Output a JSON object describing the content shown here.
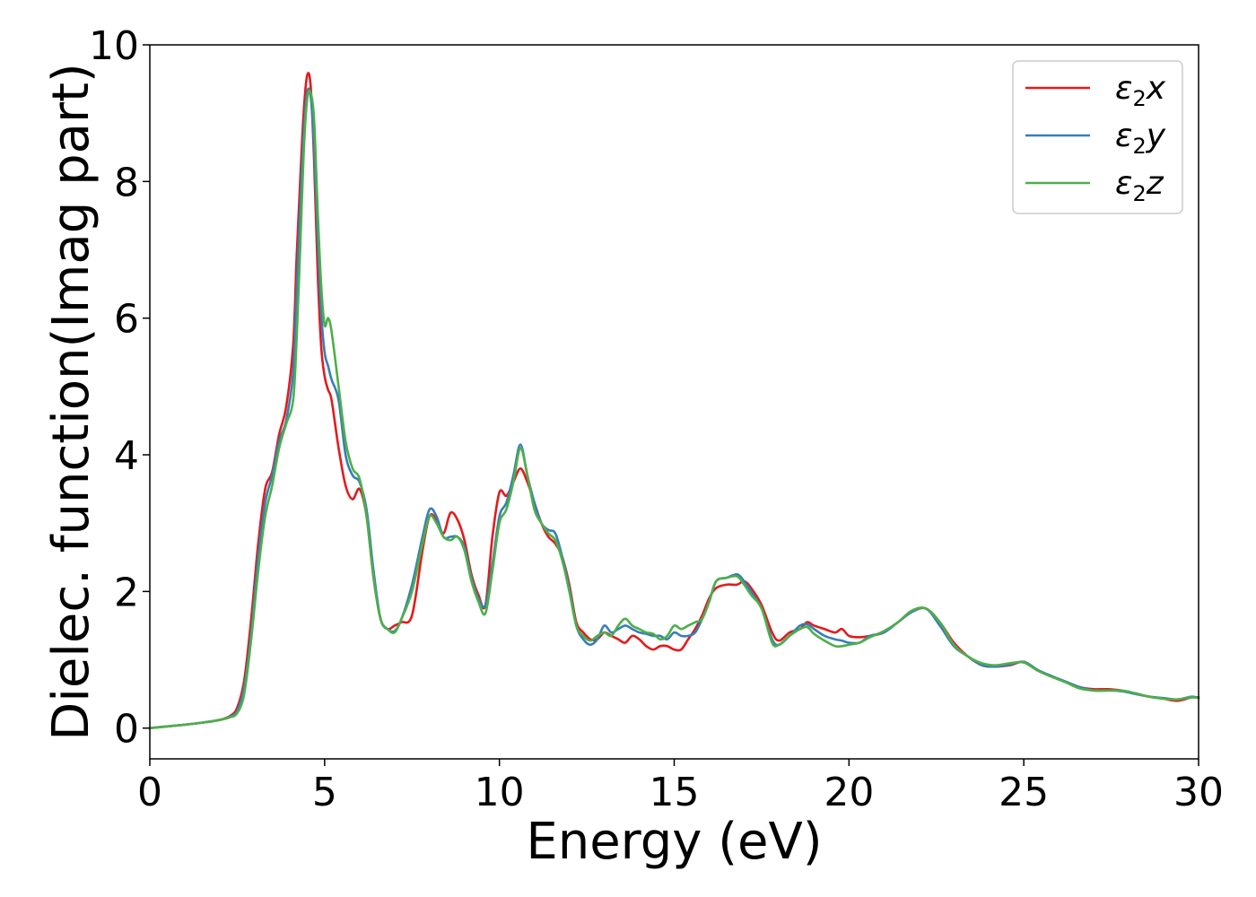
{
  "chart_data": {
    "type": "line",
    "title": "",
    "xlabel": "Energy (eV)",
    "ylabel": "Dielec. function(Imag part)",
    "xlim": [
      0,
      30
    ],
    "ylim": [
      -0.45,
      10
    ],
    "xticks": [
      0,
      5,
      10,
      15,
      20,
      25,
      30
    ],
    "yticks": [
      0,
      2,
      4,
      6,
      8,
      10
    ],
    "grid": false,
    "legend_position": "top-right",
    "series": [
      {
        "name": "ε2x",
        "legend": {
          "base": "ε",
          "sub": "2",
          "suffix": "x"
        },
        "color": "#e41a1c",
        "x": [
          0,
          1,
          1.5,
          2,
          2.3,
          2.5,
          2.7,
          2.9,
          3.1,
          3.3,
          3.5,
          3.7,
          3.9,
          4.1,
          4.2,
          4.3,
          4.4,
          4.5,
          4.6,
          4.7,
          4.8,
          4.9,
          5.0,
          5.1,
          5.2,
          5.4,
          5.6,
          5.8,
          6.0,
          6.2,
          6.4,
          6.6,
          6.8,
          7.0,
          7.2,
          7.5,
          7.8,
          8.0,
          8.2,
          8.4,
          8.6,
          8.8,
          9.0,
          9.2,
          9.4,
          9.6,
          9.8,
          10.0,
          10.2,
          10.4,
          10.6,
          10.8,
          11.0,
          11.2,
          11.4,
          11.6,
          11.8,
          12.0,
          12.2,
          12.4,
          12.6,
          12.8,
          13.0,
          13.2,
          13.4,
          13.6,
          13.8,
          14.0,
          14.2,
          14.4,
          14.6,
          14.8,
          15.0,
          15.2,
          15.4,
          15.6,
          15.8,
          16.0,
          16.2,
          16.5,
          16.8,
          17.0,
          17.2,
          17.5,
          17.8,
          18.0,
          18.3,
          18.6,
          18.8,
          19.0,
          19.3,
          19.6,
          19.8,
          20.0,
          20.3,
          20.6,
          21.0,
          21.4,
          21.8,
          22.2,
          22.6,
          23.0,
          23.4,
          23.8,
          24.2,
          24.6,
          25.0,
          25.4,
          25.8,
          26.2,
          26.6,
          27.0,
          27.4,
          27.8,
          28.2,
          28.6,
          29.0,
          29.4,
          29.8,
          30.0
        ],
        "y": [
          0,
          0.05,
          0.08,
          0.12,
          0.18,
          0.3,
          0.7,
          1.6,
          2.7,
          3.5,
          3.75,
          4.3,
          4.7,
          5.6,
          6.9,
          8.0,
          9.0,
          9.55,
          9.4,
          8.3,
          6.7,
          5.6,
          5.15,
          4.95,
          4.8,
          4.1,
          3.55,
          3.35,
          3.5,
          3.1,
          2.2,
          1.6,
          1.45,
          1.5,
          1.55,
          1.65,
          2.6,
          3.1,
          3.05,
          2.85,
          3.15,
          3.05,
          2.75,
          2.25,
          1.95,
          1.8,
          2.8,
          3.45,
          3.4,
          3.6,
          3.8,
          3.6,
          3.3,
          3.0,
          2.8,
          2.7,
          2.5,
          2.1,
          1.55,
          1.4,
          1.3,
          1.3,
          1.4,
          1.35,
          1.3,
          1.25,
          1.35,
          1.3,
          1.2,
          1.15,
          1.2,
          1.2,
          1.15,
          1.15,
          1.3,
          1.45,
          1.65,
          1.9,
          2.05,
          2.1,
          2.1,
          2.15,
          2.05,
          1.8,
          1.4,
          1.28,
          1.4,
          1.45,
          1.55,
          1.5,
          1.45,
          1.4,
          1.45,
          1.35,
          1.33,
          1.35,
          1.4,
          1.55,
          1.7,
          1.75,
          1.55,
          1.25,
          1.05,
          0.92,
          0.9,
          0.92,
          0.97,
          0.85,
          0.76,
          0.68,
          0.6,
          0.57,
          0.57,
          0.55,
          0.5,
          0.46,
          0.43,
          0.4,
          0.45,
          0.45
        ]
      },
      {
        "name": "ε2y",
        "legend": {
          "base": "ε",
          "sub": "2",
          "suffix": "y"
        },
        "color": "#377eb8",
        "x": [
          0,
          1,
          1.5,
          2,
          2.3,
          2.5,
          2.7,
          2.9,
          3.1,
          3.3,
          3.5,
          3.7,
          3.9,
          4.1,
          4.2,
          4.3,
          4.4,
          4.5,
          4.6,
          4.7,
          4.8,
          4.9,
          5.0,
          5.1,
          5.2,
          5.4,
          5.6,
          5.8,
          6.0,
          6.2,
          6.4,
          6.6,
          6.8,
          7.0,
          7.2,
          7.5,
          7.8,
          8.0,
          8.2,
          8.4,
          8.6,
          8.8,
          9.0,
          9.2,
          9.4,
          9.6,
          9.8,
          10.0,
          10.2,
          10.4,
          10.6,
          10.8,
          11.0,
          11.2,
          11.4,
          11.6,
          11.8,
          12.0,
          12.2,
          12.4,
          12.6,
          12.8,
          13.0,
          13.2,
          13.4,
          13.6,
          13.8,
          14.0,
          14.2,
          14.4,
          14.6,
          14.8,
          15.0,
          15.2,
          15.4,
          15.6,
          15.8,
          16.0,
          16.2,
          16.5,
          16.8,
          17.0,
          17.2,
          17.5,
          17.8,
          18.0,
          18.3,
          18.6,
          18.8,
          19.0,
          19.3,
          19.6,
          19.8,
          20.0,
          20.3,
          20.6,
          21.0,
          21.4,
          21.8,
          22.2,
          22.6,
          23.0,
          23.4,
          23.8,
          24.2,
          24.6,
          25.0,
          25.4,
          25.8,
          26.2,
          26.6,
          27.0,
          27.4,
          27.8,
          28.2,
          28.6,
          29.0,
          29.4,
          29.8,
          30.0
        ],
        "y": [
          0,
          0.05,
          0.08,
          0.12,
          0.17,
          0.25,
          0.6,
          1.4,
          2.5,
          3.3,
          3.7,
          4.2,
          4.5,
          5.2,
          6.4,
          7.6,
          8.7,
          9.3,
          9.25,
          8.5,
          7.2,
          6.1,
          5.5,
          5.3,
          5.1,
          4.8,
          4.0,
          3.7,
          3.6,
          3.2,
          2.3,
          1.6,
          1.45,
          1.42,
          1.6,
          2.1,
          2.8,
          3.2,
          3.1,
          2.8,
          2.8,
          2.8,
          2.65,
          2.2,
          1.9,
          1.8,
          2.4,
          3.1,
          3.3,
          3.7,
          4.15,
          3.7,
          3.3,
          3.0,
          2.9,
          2.85,
          2.5,
          2.05,
          1.5,
          1.3,
          1.22,
          1.3,
          1.5,
          1.4,
          1.45,
          1.5,
          1.45,
          1.4,
          1.38,
          1.35,
          1.35,
          1.3,
          1.4,
          1.35,
          1.35,
          1.4,
          1.6,
          1.85,
          2.15,
          2.2,
          2.25,
          2.15,
          2.0,
          1.75,
          1.3,
          1.22,
          1.35,
          1.5,
          1.52,
          1.45,
          1.35,
          1.3,
          1.28,
          1.25,
          1.25,
          1.35,
          1.4,
          1.55,
          1.7,
          1.75,
          1.5,
          1.2,
          1.05,
          0.92,
          0.9,
          0.93,
          0.97,
          0.85,
          0.76,
          0.68,
          0.6,
          0.55,
          0.55,
          0.54,
          0.5,
          0.46,
          0.44,
          0.42,
          0.46,
          0.44
        ]
      },
      {
        "name": "ε2z",
        "legend": {
          "base": "ε",
          "sub": "2",
          "suffix": "z"
        },
        "color": "#4daf4a",
        "x": [
          0,
          1,
          1.5,
          2,
          2.3,
          2.5,
          2.7,
          2.9,
          3.1,
          3.3,
          3.5,
          3.7,
          3.9,
          4.1,
          4.2,
          4.3,
          4.4,
          4.5,
          4.6,
          4.7,
          4.8,
          4.9,
          5.0,
          5.1,
          5.2,
          5.4,
          5.6,
          5.8,
          6.0,
          6.2,
          6.4,
          6.6,
          6.8,
          7.0,
          7.2,
          7.5,
          7.8,
          8.0,
          8.2,
          8.4,
          8.6,
          8.8,
          9.0,
          9.2,
          9.4,
          9.6,
          9.8,
          10.0,
          10.2,
          10.4,
          10.6,
          10.8,
          11.0,
          11.2,
          11.4,
          11.6,
          11.8,
          12.0,
          12.2,
          12.4,
          12.6,
          12.8,
          13.0,
          13.2,
          13.4,
          13.6,
          13.8,
          14.0,
          14.2,
          14.4,
          14.6,
          14.8,
          15.0,
          15.2,
          15.4,
          15.6,
          15.8,
          16.0,
          16.2,
          16.5,
          16.8,
          17.0,
          17.2,
          17.5,
          17.8,
          18.0,
          18.3,
          18.6,
          18.8,
          19.0,
          19.3,
          19.6,
          19.8,
          20.0,
          20.3,
          20.6,
          21.0,
          21.4,
          21.8,
          22.2,
          22.6,
          23.0,
          23.4,
          23.8,
          24.2,
          24.6,
          25.0,
          25.4,
          25.8,
          26.2,
          26.6,
          27.0,
          27.4,
          27.8,
          28.2,
          28.6,
          29.0,
          29.4,
          29.8,
          30.0
        ],
        "y": [
          0,
          0.05,
          0.08,
          0.12,
          0.16,
          0.22,
          0.5,
          1.3,
          2.3,
          3.1,
          3.55,
          4.1,
          4.45,
          4.8,
          5.7,
          7.0,
          8.4,
          9.2,
          9.3,
          8.9,
          7.6,
          6.5,
          5.9,
          6.0,
          5.8,
          5.0,
          4.2,
          3.8,
          3.65,
          3.1,
          2.2,
          1.6,
          1.45,
          1.4,
          1.6,
          2.0,
          2.7,
          3.1,
          3.0,
          2.8,
          2.75,
          2.8,
          2.6,
          2.15,
          1.85,
          1.68,
          2.3,
          3.0,
          3.2,
          3.6,
          4.1,
          3.7,
          3.2,
          3.0,
          2.85,
          2.75,
          2.45,
          2.0,
          1.5,
          1.35,
          1.28,
          1.35,
          1.4,
          1.35,
          1.5,
          1.6,
          1.5,
          1.45,
          1.4,
          1.38,
          1.3,
          1.35,
          1.5,
          1.45,
          1.5,
          1.55,
          1.6,
          1.85,
          2.15,
          2.2,
          2.22,
          2.1,
          1.95,
          1.75,
          1.25,
          1.22,
          1.35,
          1.45,
          1.48,
          1.38,
          1.28,
          1.2,
          1.2,
          1.22,
          1.25,
          1.33,
          1.42,
          1.55,
          1.72,
          1.75,
          1.55,
          1.22,
          1.05,
          0.95,
          0.92,
          0.95,
          0.96,
          0.84,
          0.75,
          0.67,
          0.58,
          0.55,
          0.55,
          0.55,
          0.51,
          0.46,
          0.43,
          0.42,
          0.45,
          0.44
        ]
      }
    ]
  }
}
